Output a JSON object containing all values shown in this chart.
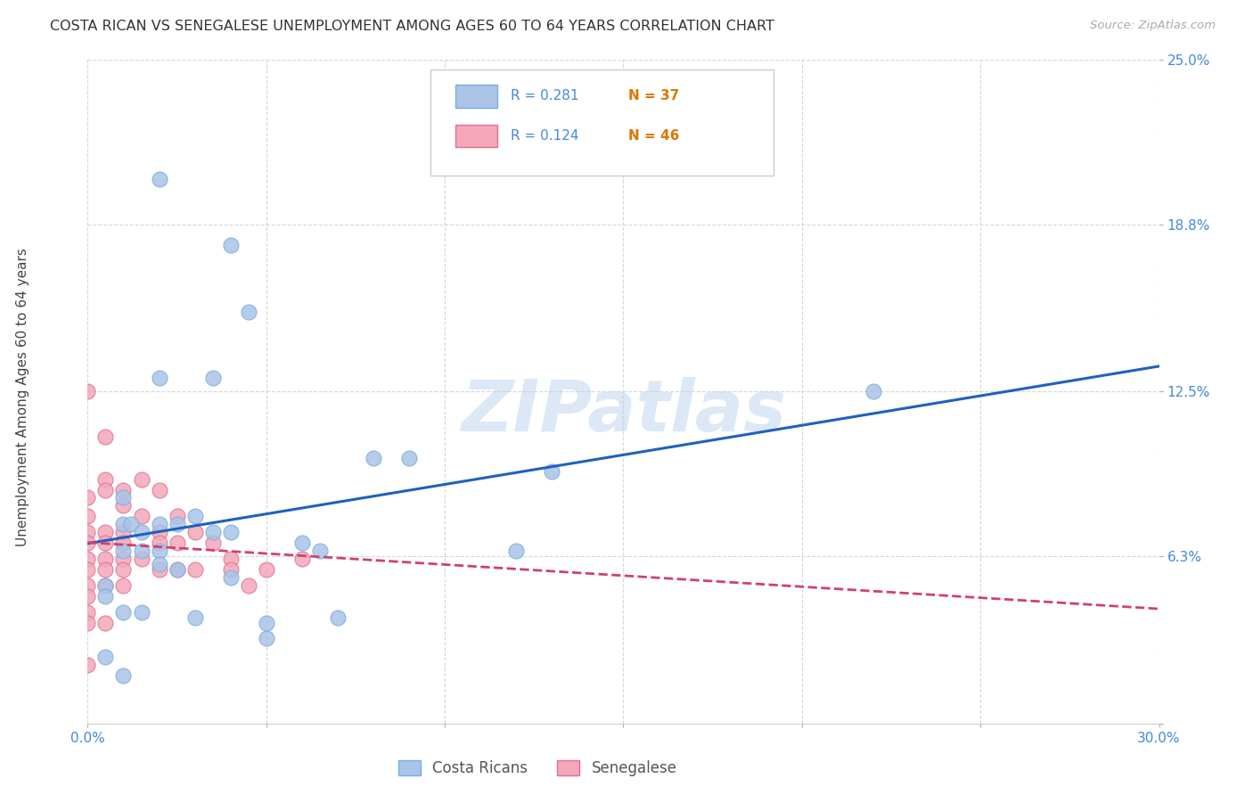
{
  "title": "COSTA RICAN VS SENEGALESE UNEMPLOYMENT AMONG AGES 60 TO 64 YEARS CORRELATION CHART",
  "source": "Source: ZipAtlas.com",
  "ylabel": "Unemployment Among Ages 60 to 64 years",
  "xlim": [
    0.0,
    0.3
  ],
  "ylim": [
    0.0,
    0.25
  ],
  "xticks": [
    0.0,
    0.05,
    0.1,
    0.15,
    0.2,
    0.25,
    0.3
  ],
  "yticks": [
    0.0,
    0.063,
    0.125,
    0.188,
    0.25
  ],
  "ytick_labels_right": [
    "",
    "6.3%",
    "12.5%",
    "18.8%",
    "25.0%"
  ],
  "xtick_labels": [
    "0.0%",
    "",
    "",
    "",
    "",
    "",
    "30.0%"
  ],
  "background_color": "#ffffff",
  "grid_color": "#cccccc",
  "costa_rica_color": "#aac4e8",
  "costa_rica_edge": "#7aaedd",
  "senegal_color": "#f4a7b9",
  "senegal_edge": "#e07090",
  "costa_rica_line_color": "#2060c0",
  "senegal_line_color": "#d04070",
  "watermark_color": "#dce8f5",
  "tick_label_color": "#4488dd",
  "title_color": "#333333",
  "source_color": "#aaaaaa",
  "costa_rica_R": 0.281,
  "costa_rica_N": 37,
  "senegal_R": 0.124,
  "senegal_N": 46,
  "costa_rica_scatter_x": [
    0.02,
    0.04,
    0.045,
    0.035,
    0.02,
    0.08,
    0.09,
    0.01,
    0.01,
    0.012,
    0.015,
    0.02,
    0.025,
    0.03,
    0.035,
    0.04,
    0.02,
    0.06,
    0.065,
    0.01,
    0.015,
    0.02,
    0.025,
    0.04,
    0.005,
    0.005,
    0.01,
    0.015,
    0.07,
    0.03,
    0.05,
    0.12,
    0.13,
    0.22,
    0.05,
    0.005,
    0.01
  ],
  "costa_rica_scatter_y": [
    0.205,
    0.18,
    0.155,
    0.13,
    0.13,
    0.1,
    0.1,
    0.085,
    0.075,
    0.075,
    0.072,
    0.075,
    0.075,
    0.078,
    0.072,
    0.072,
    0.065,
    0.068,
    0.065,
    0.065,
    0.065,
    0.06,
    0.058,
    0.055,
    0.052,
    0.048,
    0.042,
    0.042,
    0.04,
    0.04,
    0.038,
    0.065,
    0.095,
    0.125,
    0.032,
    0.025,
    0.018
  ],
  "senegal_scatter_x": [
    0.0,
    0.0,
    0.0,
    0.0,
    0.0,
    0.0,
    0.0,
    0.0,
    0.0,
    0.0,
    0.0,
    0.0,
    0.005,
    0.005,
    0.005,
    0.005,
    0.005,
    0.005,
    0.005,
    0.005,
    0.005,
    0.01,
    0.01,
    0.01,
    0.01,
    0.01,
    0.01,
    0.01,
    0.015,
    0.015,
    0.015,
    0.02,
    0.02,
    0.02,
    0.02,
    0.025,
    0.025,
    0.025,
    0.03,
    0.03,
    0.035,
    0.04,
    0.04,
    0.045,
    0.05,
    0.06
  ],
  "senegal_scatter_y": [
    0.125,
    0.085,
    0.078,
    0.072,
    0.068,
    0.062,
    0.058,
    0.052,
    0.048,
    0.042,
    0.038,
    0.022,
    0.108,
    0.092,
    0.088,
    0.072,
    0.068,
    0.062,
    0.058,
    0.052,
    0.038,
    0.088,
    0.082,
    0.072,
    0.068,
    0.062,
    0.058,
    0.052,
    0.092,
    0.078,
    0.062,
    0.088,
    0.072,
    0.068,
    0.058,
    0.078,
    0.068,
    0.058,
    0.072,
    0.058,
    0.068,
    0.062,
    0.058,
    0.052,
    0.058,
    0.062
  ]
}
